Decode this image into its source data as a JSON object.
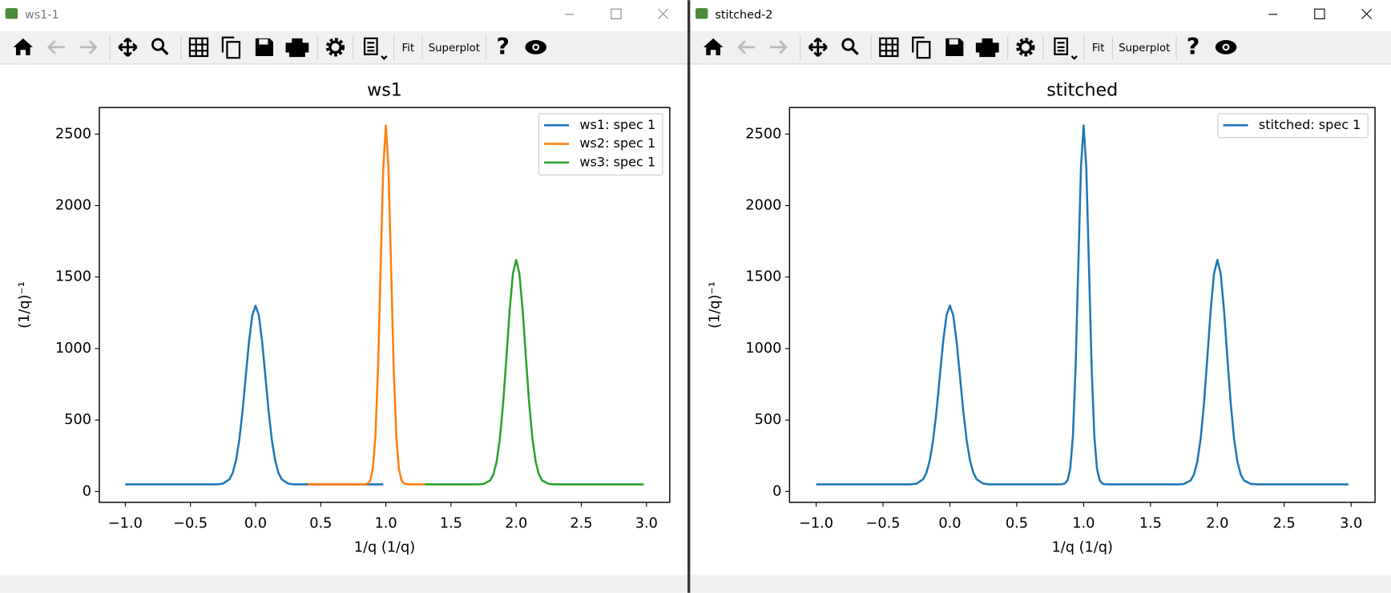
{
  "windows": [
    {
      "title": "ws1-1",
      "toolbar": [
        "Fit",
        "Superplot",
        "?"
      ]
    },
    {
      "title": "stitched-2",
      "toolbar": [
        "Fit",
        "Superplot",
        "?"
      ]
    }
  ],
  "chart_data": [
    {
      "type": "line",
      "title": "ws1",
      "xlabel": "1/q (1/q)",
      "ylabel": "(1/q)⁻¹",
      "legend": "upper right",
      "xlim": [
        -1.199,
        3.179
      ],
      "ylim": [
        -75.5,
        2685.5
      ],
      "xticks": [
        {
          "value": -1,
          "label": "−1.0"
        },
        {
          "value": -0.5,
          "label": "−0.5"
        },
        {
          "value": 0,
          "label": "0.0"
        },
        0.5,
        {
          "value": 1,
          "label": "1.0"
        },
        1.5,
        {
          "value": 2,
          "label": "2.0"
        },
        2.5,
        {
          "value": 3,
          "label": "3.0"
        }
      ],
      "yticks": [
        0,
        500,
        1000,
        1500,
        2000,
        2500
      ],
      "series": [
        {
          "name": "ws1: spec 1",
          "color": "#1f77b4",
          "x": [
            -1,
            -0.8,
            -0.6,
            -0.4,
            -0.3,
            -0.25,
            -0.2,
            -0.175,
            -0.15,
            -0.125,
            -0.1,
            -0.075,
            -0.05,
            -0.025,
            0,
            0.025,
            0.05,
            0.075,
            0.1,
            0.125,
            0.15,
            0.175,
            0.2,
            0.25,
            0.3,
            0.4,
            0.6,
            0.8,
            0.98
          ],
          "values": [
            50,
            50,
            50,
            50,
            50,
            55,
            86,
            132,
            219,
            361,
            564,
            809,
            1051,
            1233,
            1300,
            1233,
            1051,
            809,
            564,
            361,
            219,
            132,
            86,
            55,
            50,
            50,
            50,
            50,
            50
          ]
        },
        {
          "name": "ws2: spec 1",
          "color": "#ff7f0e",
          "x": [
            0.4,
            0.6,
            0.8,
            0.84,
            0.86,
            0.88,
            0.9,
            0.92,
            0.94,
            0.96,
            0.98,
            1.0,
            1.02,
            1.04,
            1.06,
            1.08,
            1.1,
            1.12,
            1.14,
            1.16,
            1.2,
            1.3
          ],
          "values": [
            50,
            50,
            50,
            51,
            56,
            78,
            160,
            389,
            866,
            1574,
            2264,
            2560,
            2264,
            1574,
            866,
            389,
            160,
            78,
            56,
            51,
            50,
            50
          ]
        },
        {
          "name": "ws3: spec 1",
          "color": "#2ca02c",
          "x": [
            1.3,
            1.5,
            1.7,
            1.75,
            1.8,
            1.825,
            1.85,
            1.875,
            1.9,
            1.925,
            1.95,
            1.975,
            2.0,
            2.025,
            2.05,
            2.075,
            2.1,
            2.125,
            2.15,
            2.175,
            2.2,
            2.25,
            2.3,
            2.5,
            2.7,
            2.98
          ],
          "values": [
            50,
            50,
            50,
            53,
            77,
            119,
            208,
            369,
            615,
            934,
            1267,
            1523,
            1620,
            1523,
            1267,
            934,
            615,
            369,
            208,
            119,
            77,
            53,
            50,
            50,
            50,
            50
          ]
        }
      ]
    },
    {
      "type": "line",
      "title": "stitched",
      "xlabel": "1/q (1/q)",
      "ylabel": "(1/q)⁻¹",
      "legend": "upper right",
      "xlim": [
        -1.199,
        3.179
      ],
      "ylim": [
        -75.5,
        2685.5
      ],
      "xticks": [
        {
          "value": -1,
          "label": "−1.0"
        },
        {
          "value": -0.5,
          "label": "−0.5"
        },
        {
          "value": 0,
          "label": "0.0"
        },
        0.5,
        {
          "value": 1,
          "label": "1.0"
        },
        1.5,
        {
          "value": 2,
          "label": "2.0"
        },
        2.5,
        {
          "value": 3,
          "label": "3.0"
        }
      ],
      "yticks": [
        0,
        500,
        1000,
        1500,
        2000,
        2500
      ],
      "series": [
        {
          "name": "stitched: spec 1",
          "color": "#1f77b4",
          "x": [
            -1,
            -0.8,
            -0.6,
            -0.4,
            -0.3,
            -0.25,
            -0.2,
            -0.175,
            -0.15,
            -0.125,
            -0.1,
            -0.075,
            -0.05,
            -0.025,
            0,
            0.025,
            0.05,
            0.075,
            0.1,
            0.125,
            0.15,
            0.175,
            0.2,
            0.25,
            0.3,
            0.4,
            0.6,
            0.8,
            0.84,
            0.86,
            0.88,
            0.9,
            0.92,
            0.94,
            0.96,
            0.98,
            1.0,
            1.02,
            1.04,
            1.06,
            1.08,
            1.1,
            1.12,
            1.14,
            1.16,
            1.2,
            1.5,
            1.7,
            1.75,
            1.8,
            1.825,
            1.85,
            1.875,
            1.9,
            1.925,
            1.95,
            1.975,
            2.0,
            2.025,
            2.05,
            2.075,
            2.1,
            2.125,
            2.15,
            2.175,
            2.2,
            2.25,
            2.3,
            2.5,
            2.7,
            2.98
          ],
          "values": [
            50,
            50,
            50,
            50,
            50,
            55,
            86,
            132,
            219,
            361,
            564,
            809,
            1051,
            1233,
            1300,
            1233,
            1051,
            809,
            564,
            361,
            219,
            132,
            86,
            55,
            50,
            50,
            50,
            50,
            51,
            56,
            78,
            160,
            389,
            866,
            1574,
            2264,
            2560,
            2264,
            1574,
            866,
            389,
            160,
            78,
            56,
            51,
            50,
            50,
            50,
            53,
            77,
            119,
            208,
            369,
            615,
            934,
            1267,
            1523,
            1620,
            1523,
            1267,
            934,
            615,
            369,
            208,
            119,
            77,
            53,
            50,
            50,
            50,
            50
          ]
        }
      ]
    }
  ]
}
